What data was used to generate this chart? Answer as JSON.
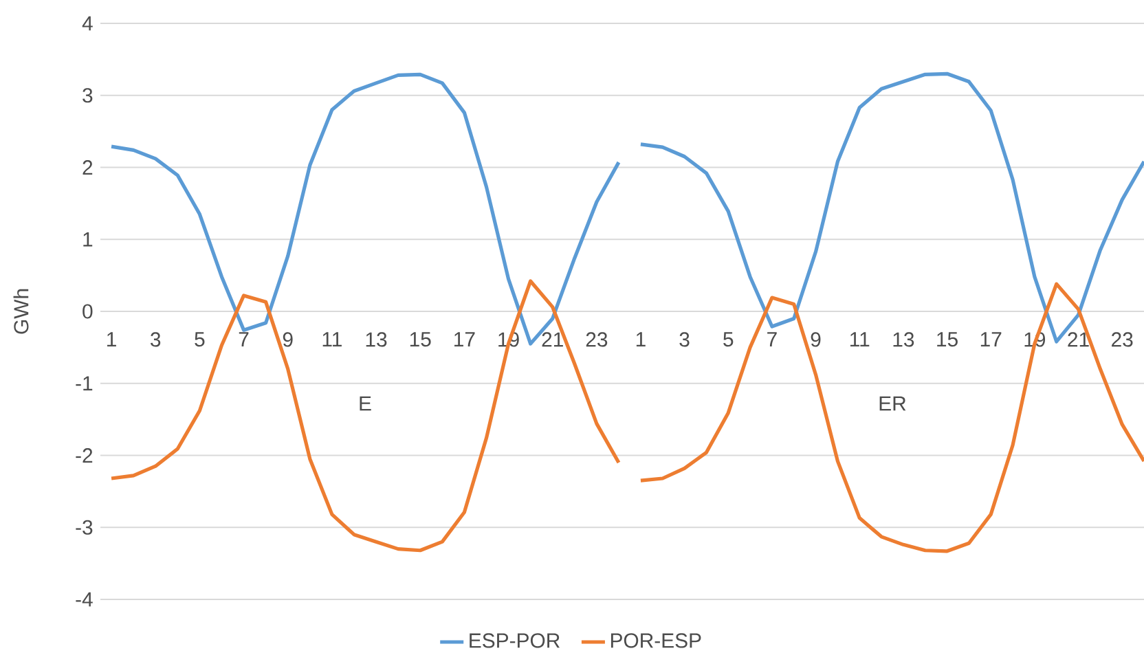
{
  "chart_data": [
    {
      "type": "line",
      "xlabel": "E",
      "ylabel": "GWh",
      "categories": [
        "1",
        null,
        "3",
        null,
        "5",
        null,
        "7",
        null,
        "9",
        null,
        "11",
        null,
        "13",
        null,
        "15",
        null,
        "17",
        null,
        "19",
        null,
        "21",
        null,
        "23",
        null
      ],
      "series": [
        {
          "name": "ESP-POR",
          "color": "#5b9bd5",
          "values": [
            2.29,
            2.24,
            2.12,
            1.89,
            1.35,
            0.48,
            -0.26,
            -0.16,
            0.77,
            2.03,
            2.8,
            3.06,
            3.17,
            3.28,
            3.29,
            3.17,
            2.76,
            1.73,
            0.45,
            -0.45,
            -0.1,
            0.74,
            1.52,
            2.07
          ]
        },
        {
          "name": "POR-ESP",
          "color": "#ed7d31",
          "values": [
            -2.32,
            -2.28,
            -2.15,
            -1.91,
            -1.38,
            -0.47,
            0.22,
            0.13,
            -0.8,
            -2.05,
            -2.82,
            -3.1,
            -3.2,
            -3.3,
            -3.32,
            -3.2,
            -2.79,
            -1.76,
            -0.45,
            0.42,
            0.06,
            -0.73,
            -1.56,
            -2.1
          ]
        }
      ],
      "ylim": [
        -4,
        4
      ],
      "yticks": [
        -4,
        -3,
        -2,
        -1,
        0,
        1,
        2,
        3,
        4
      ],
      "grid": "y",
      "legend": "bottom"
    },
    {
      "type": "line",
      "xlabel": "ER",
      "categories": [
        "1",
        null,
        "3",
        null,
        "5",
        null,
        "7",
        null,
        "9",
        null,
        "11",
        null,
        "13",
        null,
        "15",
        null,
        "17",
        null,
        "19",
        null,
        "21",
        null,
        "23",
        null
      ],
      "series": [
        {
          "color": "#5b9bd5",
          "values": [
            2.32,
            2.28,
            2.15,
            1.92,
            1.39,
            0.48,
            -0.21,
            -0.1,
            0.83,
            2.08,
            2.83,
            3.09,
            3.19,
            3.29,
            3.3,
            3.19,
            2.79,
            1.83,
            0.48,
            -0.42,
            -0.05,
            0.85,
            1.55,
            2.08
          ]
        },
        {
          "color": "#ed7d31",
          "values": [
            -2.35,
            -2.32,
            -2.18,
            -1.96,
            -1.41,
            -0.5,
            0.19,
            0.1,
            -0.88,
            -2.08,
            -2.87,
            -3.13,
            -3.24,
            -3.32,
            -3.33,
            -3.22,
            -2.82,
            -1.86,
            -0.45,
            0.38,
            0.03,
            -0.8,
            -1.57,
            -2.08
          ]
        }
      ],
      "ylim": [
        -4,
        4
      ],
      "yticks": [
        -4,
        -3,
        -2,
        -1,
        0,
        1,
        2,
        3,
        4
      ],
      "grid": "y",
      "tick_labels": "x"
    }
  ]
}
